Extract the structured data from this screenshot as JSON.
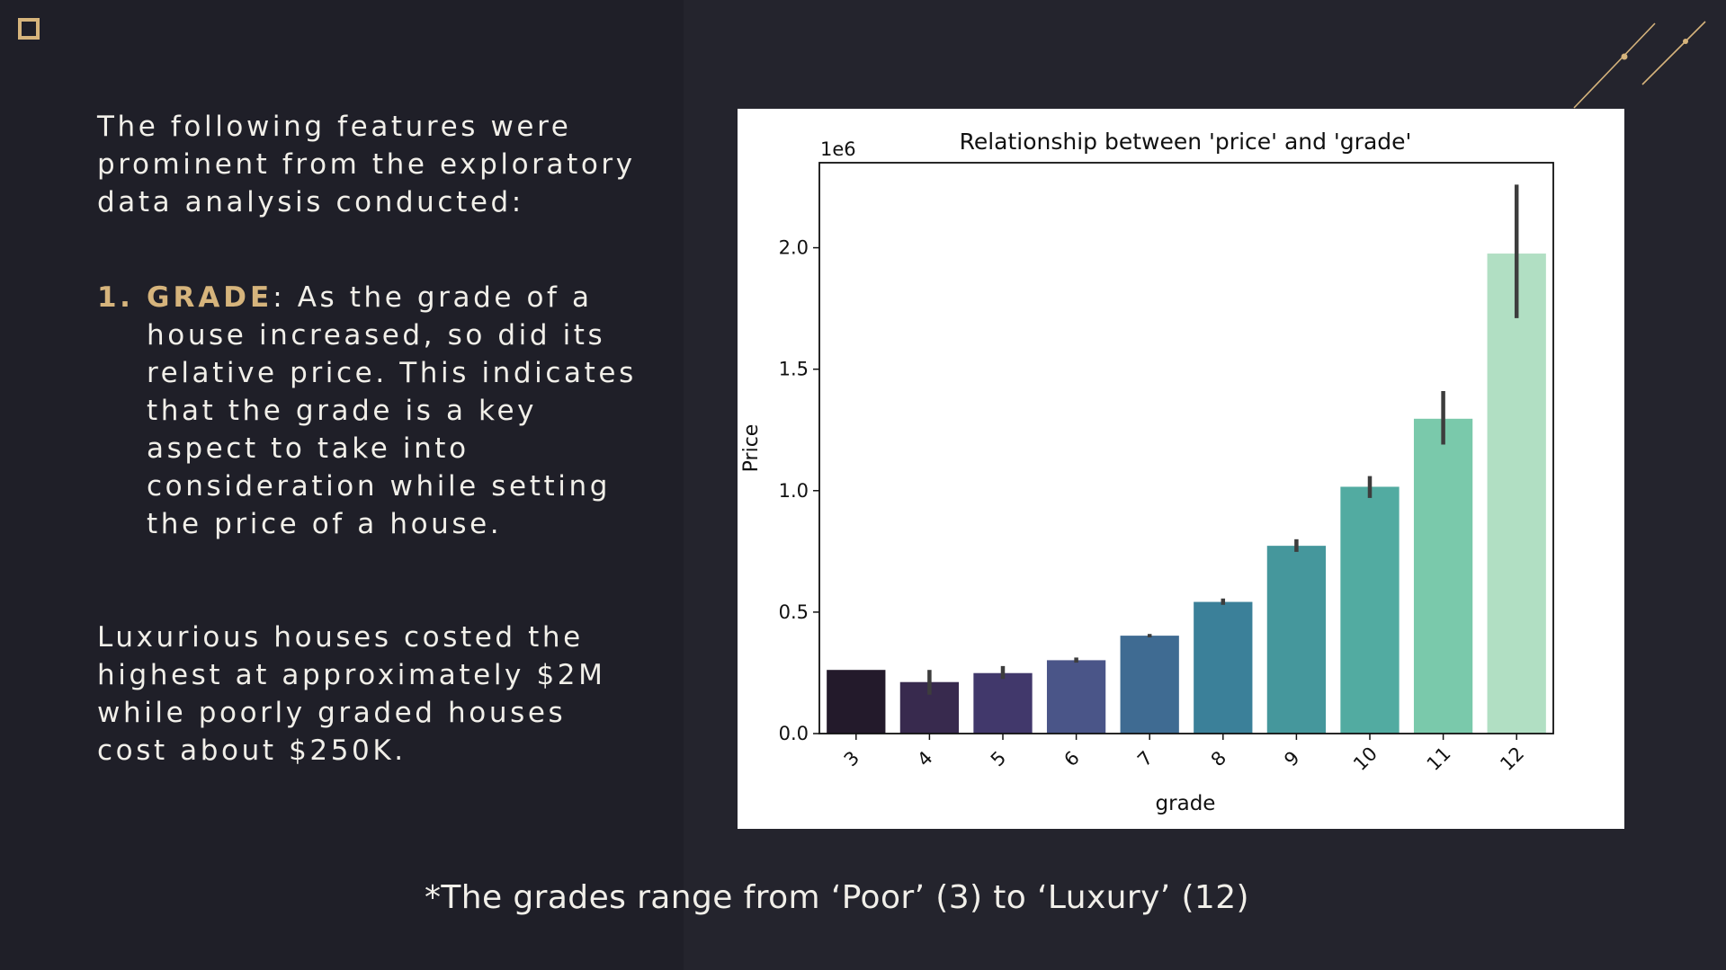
{
  "slide": {
    "intro": "The following features were prominent from the exploratory data analysis conducted:",
    "point_number": "1.",
    "point_keyword": "GRADE",
    "point_text": ": As the grade of a house increased, so did its relative price. This indicates that the grade is a key aspect to take into consideration while setting the price of a house.",
    "summary": "Luxurious houses costed the highest at approximately $2M while poorly graded houses cost about $250K.",
    "footnote": "*The grades range from ‘Poor’ (3) to ‘Luxury’ (12)",
    "accent_color": "#d6b47c",
    "background_color": "#24242d"
  },
  "chart_data": {
    "type": "bar",
    "title": "Relationship between 'price' and 'grade'",
    "xlabel": "grade",
    "ylabel": "Price",
    "y_offset_label": "1e6",
    "categories": [
      "3",
      "4",
      "5",
      "6",
      "7",
      "8",
      "9",
      "10",
      "11",
      "12"
    ],
    "values": [
      0.262,
      0.212,
      0.249,
      0.302,
      0.403,
      0.542,
      0.773,
      1.016,
      1.296,
      1.976
    ],
    "error_low": [
      0.262,
      0.16,
      0.225,
      0.292,
      0.396,
      0.53,
      0.748,
      0.97,
      1.19,
      1.71
    ],
    "error_high": [
      0.262,
      0.262,
      0.278,
      0.313,
      0.41,
      0.556,
      0.8,
      1.06,
      1.41,
      2.26
    ],
    "yticks": [
      "0.0",
      "0.5",
      "1.0",
      "1.5",
      "2.0"
    ],
    "ylim": [
      0,
      2.35
    ],
    "colors": [
      "#231a2b",
      "#382a4e",
      "#41386b",
      "#4a5588",
      "#3f6b92",
      "#3b8099",
      "#45979c",
      "#52aba1",
      "#7ac9ab",
      "#b1dfc3"
    ],
    "grid": false,
    "legend": "none"
  }
}
